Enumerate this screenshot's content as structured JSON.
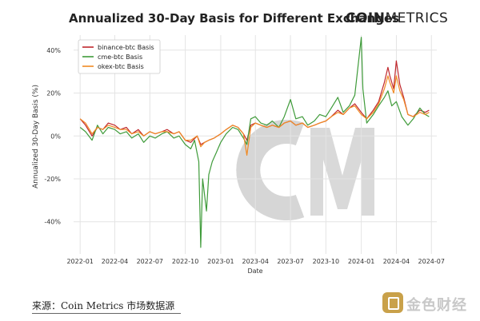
{
  "chart_data": {
    "type": "line",
    "title": "Annualized 30-Day Basis for Different Exchanges",
    "xlabel": "Date",
    "ylabel": "Annualized 30-Day Basis (%)",
    "x_ticks": [
      "2022-01",
      "2022-04",
      "2022-07",
      "2022-10",
      "2023-01",
      "2023-04",
      "2023-07",
      "2023-10",
      "2024-01",
      "2024-04",
      "2024-07"
    ],
    "y_ticks": [
      "-40%",
      "-20%",
      "0%",
      "20%",
      "40%"
    ],
    "y_tick_values": [
      -40,
      -20,
      0,
      20,
      40
    ],
    "ylim": [
      -55,
      47
    ],
    "xlim": [
      "2021-12-15",
      "2024-07-15"
    ],
    "grid": true,
    "legend_position": "top-left",
    "series": [
      {
        "name": "binance-btc Basis",
        "color": "#c0282d",
        "points": [
          [
            "2022-01-01",
            8
          ],
          [
            "2022-01-15",
            5
          ],
          [
            "2022-02-01",
            0
          ],
          [
            "2022-02-15",
            4
          ],
          [
            "2022-03-01",
            3
          ],
          [
            "2022-03-15",
            6
          ],
          [
            "2022-04-01",
            5
          ],
          [
            "2022-04-15",
            3
          ],
          [
            "2022-05-01",
            4
          ],
          [
            "2022-05-15",
            1
          ],
          [
            "2022-06-01",
            3
          ],
          [
            "2022-06-15",
            0
          ],
          [
            "2022-07-01",
            2
          ],
          [
            "2022-07-15",
            1
          ],
          [
            "2022-08-01",
            2
          ],
          [
            "2022-08-15",
            3
          ],
          [
            "2022-09-01",
            1
          ],
          [
            "2022-09-15",
            2
          ],
          [
            "2022-10-01",
            -2
          ],
          [
            "2022-10-15",
            -3
          ],
          [
            "2022-11-01",
            0
          ],
          [
            "2022-11-10",
            -4
          ],
          [
            "2022-11-20",
            -3
          ],
          [
            "2022-12-01",
            -2
          ],
          [
            "2022-12-15",
            -1
          ],
          [
            "2023-01-01",
            1
          ],
          [
            "2023-01-15",
            3
          ],
          [
            "2023-02-01",
            5
          ],
          [
            "2023-02-15",
            4
          ],
          [
            "2023-03-01",
            1
          ],
          [
            "2023-03-10",
            -2
          ],
          [
            "2023-03-20",
            5
          ],
          [
            "2023-04-01",
            6
          ],
          [
            "2023-04-15",
            5
          ],
          [
            "2023-05-01",
            4
          ],
          [
            "2023-05-15",
            5
          ],
          [
            "2023-06-01",
            4
          ],
          [
            "2023-06-15",
            6
          ],
          [
            "2023-07-01",
            7
          ],
          [
            "2023-07-15",
            5
          ],
          [
            "2023-08-01",
            6
          ],
          [
            "2023-08-15",
            4
          ],
          [
            "2023-09-01",
            5
          ],
          [
            "2023-09-15",
            6
          ],
          [
            "2023-10-01",
            7
          ],
          [
            "2023-10-15",
            9
          ],
          [
            "2023-11-01",
            12
          ],
          [
            "2023-11-15",
            10
          ],
          [
            "2023-12-01",
            13
          ],
          [
            "2023-12-15",
            15
          ],
          [
            "2024-01-01",
            11
          ],
          [
            "2024-01-15",
            8
          ],
          [
            "2024-02-01",
            12
          ],
          [
            "2024-02-15",
            16
          ],
          [
            "2024-03-01",
            25
          ],
          [
            "2024-03-10",
            32
          ],
          [
            "2024-03-15",
            28
          ],
          [
            "2024-03-25",
            22
          ],
          [
            "2024-04-01",
            35
          ],
          [
            "2024-04-10",
            24
          ],
          [
            "2024-04-20",
            18
          ],
          [
            "2024-05-01",
            10
          ],
          [
            "2024-05-15",
            9
          ],
          [
            "2024-06-01",
            12
          ],
          [
            "2024-06-15",
            11
          ],
          [
            "2024-06-25",
            12
          ]
        ]
      },
      {
        "name": "cme-btc Basis",
        "color": "#3f9b3a",
        "points": [
          [
            "2022-01-01",
            4
          ],
          [
            "2022-01-15",
            2
          ],
          [
            "2022-02-01",
            -2
          ],
          [
            "2022-02-15",
            5
          ],
          [
            "2022-03-01",
            1
          ],
          [
            "2022-03-15",
            4
          ],
          [
            "2022-04-01",
            3
          ],
          [
            "2022-04-15",
            1
          ],
          [
            "2022-05-01",
            2
          ],
          [
            "2022-05-15",
            -1
          ],
          [
            "2022-06-01",
            1
          ],
          [
            "2022-06-15",
            -3
          ],
          [
            "2022-07-01",
            0
          ],
          [
            "2022-07-15",
            -1
          ],
          [
            "2022-08-01",
            1
          ],
          [
            "2022-08-15",
            2
          ],
          [
            "2022-09-01",
            -1
          ],
          [
            "2022-09-15",
            0
          ],
          [
            "2022-10-01",
            -4
          ],
          [
            "2022-10-15",
            -6
          ],
          [
            "2022-10-25",
            -2
          ],
          [
            "2022-11-05",
            -12
          ],
          [
            "2022-11-10",
            -52
          ],
          [
            "2022-11-15",
            -20
          ],
          [
            "2022-11-25",
            -35
          ],
          [
            "2022-12-01",
            -18
          ],
          [
            "2022-12-10",
            -12
          ],
          [
            "2022-12-20",
            -8
          ],
          [
            "2023-01-01",
            -3
          ],
          [
            "2023-01-15",
            1
          ],
          [
            "2023-02-01",
            4
          ],
          [
            "2023-02-15",
            3
          ],
          [
            "2023-03-01",
            -1
          ],
          [
            "2023-03-10",
            -4
          ],
          [
            "2023-03-20",
            8
          ],
          [
            "2023-04-01",
            9
          ],
          [
            "2023-04-15",
            6
          ],
          [
            "2023-05-01",
            5
          ],
          [
            "2023-05-15",
            7
          ],
          [
            "2023-06-01",
            4
          ],
          [
            "2023-06-15",
            9
          ],
          [
            "2023-07-01",
            17
          ],
          [
            "2023-07-15",
            8
          ],
          [
            "2023-08-01",
            9
          ],
          [
            "2023-08-15",
            5
          ],
          [
            "2023-09-01",
            7
          ],
          [
            "2023-09-15",
            10
          ],
          [
            "2023-10-01",
            9
          ],
          [
            "2023-10-15",
            13
          ],
          [
            "2023-11-01",
            18
          ],
          [
            "2023-11-15",
            11
          ],
          [
            "2023-12-01",
            14
          ],
          [
            "2023-12-15",
            19
          ],
          [
            "2024-01-01",
            46
          ],
          [
            "2024-01-05",
            22
          ],
          [
            "2024-01-15",
            6
          ],
          [
            "2024-02-01",
            10
          ],
          [
            "2024-02-15",
            14
          ],
          [
            "2024-03-01",
            18
          ],
          [
            "2024-03-10",
            21
          ],
          [
            "2024-03-20",
            14
          ],
          [
            "2024-04-01",
            16
          ],
          [
            "2024-04-15",
            9
          ],
          [
            "2024-05-01",
            5
          ],
          [
            "2024-05-15",
            8
          ],
          [
            "2024-06-01",
            13
          ],
          [
            "2024-06-15",
            10
          ],
          [
            "2024-06-25",
            9
          ]
        ]
      },
      {
        "name": "okex-btc Basis",
        "color": "#f08a24",
        "points": [
          [
            "2022-01-01",
            8
          ],
          [
            "2022-01-15",
            6
          ],
          [
            "2022-02-01",
            1
          ],
          [
            "2022-02-15",
            4
          ],
          [
            "2022-03-01",
            3
          ],
          [
            "2022-03-15",
            5
          ],
          [
            "2022-04-01",
            4
          ],
          [
            "2022-04-15",
            3
          ],
          [
            "2022-05-01",
            3
          ],
          [
            "2022-05-15",
            1
          ],
          [
            "2022-06-01",
            2
          ],
          [
            "2022-06-15",
            0
          ],
          [
            "2022-07-01",
            2
          ],
          [
            "2022-07-15",
            1
          ],
          [
            "2022-08-01",
            2
          ],
          [
            "2022-08-15",
            2
          ],
          [
            "2022-09-01",
            1
          ],
          [
            "2022-09-15",
            2
          ],
          [
            "2022-10-01",
            -2
          ],
          [
            "2022-10-15",
            -2
          ],
          [
            "2022-11-01",
            0
          ],
          [
            "2022-11-10",
            -5
          ],
          [
            "2022-11-20",
            -3
          ],
          [
            "2022-12-01",
            -2
          ],
          [
            "2022-12-15",
            -1
          ],
          [
            "2023-01-01",
            1
          ],
          [
            "2023-01-15",
            3
          ],
          [
            "2023-02-01",
            5
          ],
          [
            "2023-02-15",
            4
          ],
          [
            "2023-03-01",
            1
          ],
          [
            "2023-03-10",
            -9
          ],
          [
            "2023-03-20",
            4
          ],
          [
            "2023-04-01",
            6
          ],
          [
            "2023-04-15",
            5
          ],
          [
            "2023-05-01",
            4
          ],
          [
            "2023-05-15",
            5
          ],
          [
            "2023-06-01",
            4
          ],
          [
            "2023-06-15",
            6
          ],
          [
            "2023-07-01",
            7
          ],
          [
            "2023-07-15",
            5
          ],
          [
            "2023-08-01",
            6
          ],
          [
            "2023-08-15",
            4
          ],
          [
            "2023-09-01",
            5
          ],
          [
            "2023-09-15",
            6
          ],
          [
            "2023-10-01",
            7
          ],
          [
            "2023-10-15",
            9
          ],
          [
            "2023-11-01",
            11
          ],
          [
            "2023-11-15",
            10
          ],
          [
            "2023-12-01",
            13
          ],
          [
            "2023-12-15",
            14
          ],
          [
            "2024-01-01",
            10
          ],
          [
            "2024-01-15",
            8
          ],
          [
            "2024-02-01",
            11
          ],
          [
            "2024-02-15",
            15
          ],
          [
            "2024-03-01",
            22
          ],
          [
            "2024-03-10",
            28
          ],
          [
            "2024-03-15",
            25
          ],
          [
            "2024-03-25",
            20
          ],
          [
            "2024-04-01",
            28
          ],
          [
            "2024-04-10",
            21
          ],
          [
            "2024-04-20",
            17
          ],
          [
            "2024-05-01",
            10
          ],
          [
            "2024-05-15",
            9
          ],
          [
            "2024-06-01",
            11
          ],
          [
            "2024-06-15",
            10
          ],
          [
            "2024-06-25",
            11
          ]
        ]
      }
    ]
  },
  "header": {
    "logo_bold": "COIN",
    "logo_rest": "METRICS"
  },
  "footer": {
    "source": "来源：Coin Metrics 市场数据源",
    "watermark": "金色财经"
  }
}
